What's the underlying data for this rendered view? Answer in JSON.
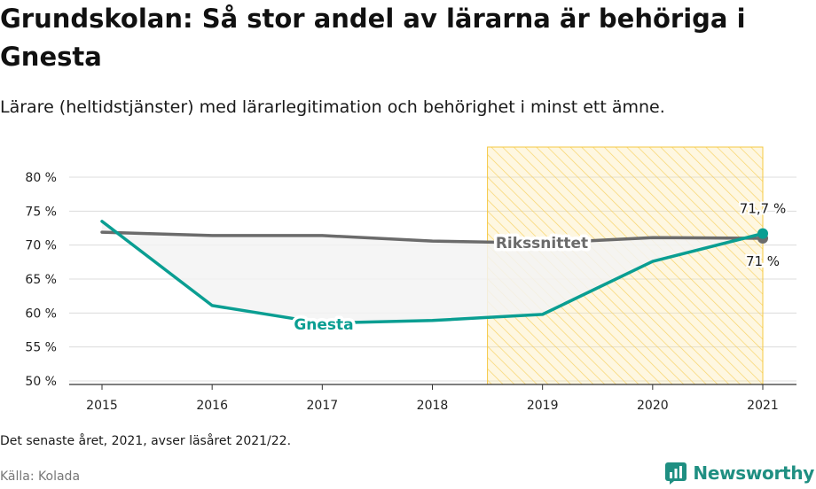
{
  "title": "Grundskolan: Så stor andel av lärarna är behöriga i Gnesta",
  "subtitle": "Lärare (heltidstjänster) med lärarlegitimation och behörighet i minst ett ämne.",
  "note": "Det senaste året, 2021, avser läsåret 2021/22.",
  "source": "Källa: Kolada",
  "brand": {
    "name": "Newsworthy",
    "icon": "newsworthy-logo-icon",
    "color": "#1f8f82"
  },
  "colors": {
    "gnesta": "#0a9e92",
    "riket": "#6b6b6b",
    "highlight_fill": "#fbe7a8",
    "highlight_border": "#f5c842",
    "area_fill": "#f3f3f3"
  },
  "chart_data": {
    "type": "line",
    "x": [
      "2015",
      "2016",
      "2017",
      "2018",
      "2019",
      "2020",
      "2021"
    ],
    "ylim": [
      50,
      80
    ],
    "yticks": [
      50,
      55,
      60,
      65,
      70,
      75,
      80
    ],
    "ytick_labels": [
      "50 %",
      "55 %",
      "60 %",
      "65 %",
      "70 %",
      "75 %",
      "80 %"
    ],
    "grid": true,
    "highlight_range": [
      "2019",
      "2021"
    ],
    "series": [
      {
        "name": "Gnesta",
        "values": [
          73.5,
          61.1,
          58.5,
          58.9,
          59.8,
          67.6,
          71.7
        ],
        "end_label": "71,7 %",
        "key": "gnesta"
      },
      {
        "name": "Rikssnittet",
        "values": [
          71.9,
          71.4,
          71.4,
          70.6,
          70.3,
          71.1,
          71.0
        ],
        "end_label": "71 %",
        "key": "riket"
      }
    ]
  }
}
